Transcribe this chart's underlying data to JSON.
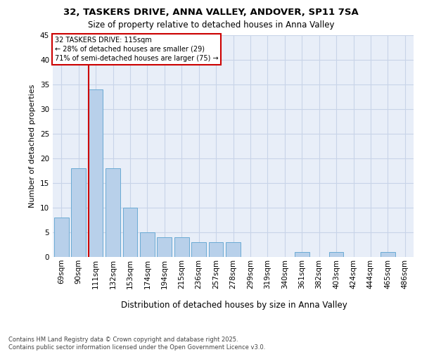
{
  "title_line1": "32, TASKERS DRIVE, ANNA VALLEY, ANDOVER, SP11 7SA",
  "title_line2": "Size of property relative to detached houses in Anna Valley",
  "xlabel": "Distribution of detached houses by size in Anna Valley",
  "ylabel": "Number of detached properties",
  "categories": [
    "69sqm",
    "90sqm",
    "111sqm",
    "132sqm",
    "153sqm",
    "174sqm",
    "194sqm",
    "215sqm",
    "236sqm",
    "257sqm",
    "278sqm",
    "299sqm",
    "319sqm",
    "340sqm",
    "361sqm",
    "382sqm",
    "403sqm",
    "424sqm",
    "444sqm",
    "465sqm",
    "486sqm"
  ],
  "values": [
    8,
    18,
    34,
    18,
    10,
    5,
    4,
    4,
    3,
    3,
    3,
    0,
    0,
    0,
    1,
    0,
    1,
    0,
    0,
    1,
    0
  ],
  "bar_color": "#b8d0ea",
  "bar_edge_color": "#6aaad4",
  "grid_color": "#c8d4e8",
  "bg_color": "#e8eef8",
  "vline_color": "#cc0000",
  "property_bin_index": 2,
  "annotation_line1": "32 TASKERS DRIVE: 115sqm",
  "annotation_line2": "← 28% of detached houses are smaller (29)",
  "annotation_line3": "71% of semi-detached houses are larger (75) →",
  "annotation_box_facecolor": "#ffffff",
  "annotation_box_edgecolor": "#cc0000",
  "footnote": "Contains HM Land Registry data © Crown copyright and database right 2025.\nContains public sector information licensed under the Open Government Licence v3.0.",
  "ylim_max": 45,
  "yticks": [
    0,
    5,
    10,
    15,
    20,
    25,
    30,
    35,
    40,
    45
  ],
  "title1_fontsize": 9.5,
  "title2_fontsize": 8.5,
  "ylabel_fontsize": 8,
  "xlabel_fontsize": 8.5,
  "tick_fontsize": 7.5,
  "footnote_fontsize": 6.0
}
